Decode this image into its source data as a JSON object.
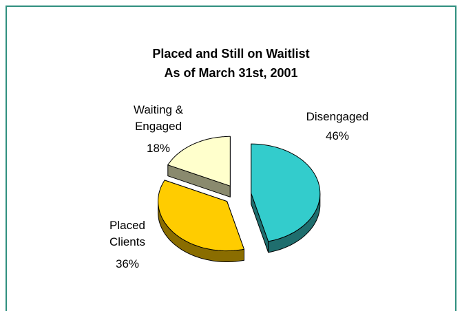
{
  "chart_data": {
    "type": "pie",
    "title": "Placed and Still on Waitlist",
    "subtitle": "As of March 31st, 2001",
    "categories": [
      "Disengaged",
      "Placed Clients",
      "Waiting & Engaged"
    ],
    "values": [
      46,
      36,
      18
    ],
    "value_labels": [
      "46%",
      "36%",
      "18%"
    ],
    "colors": [
      "#33cccc",
      "#ffcc00",
      "#ffffcc"
    ],
    "side_colors": [
      "#1f6e6e",
      "#8a6d00",
      "#8a8a6e"
    ]
  }
}
